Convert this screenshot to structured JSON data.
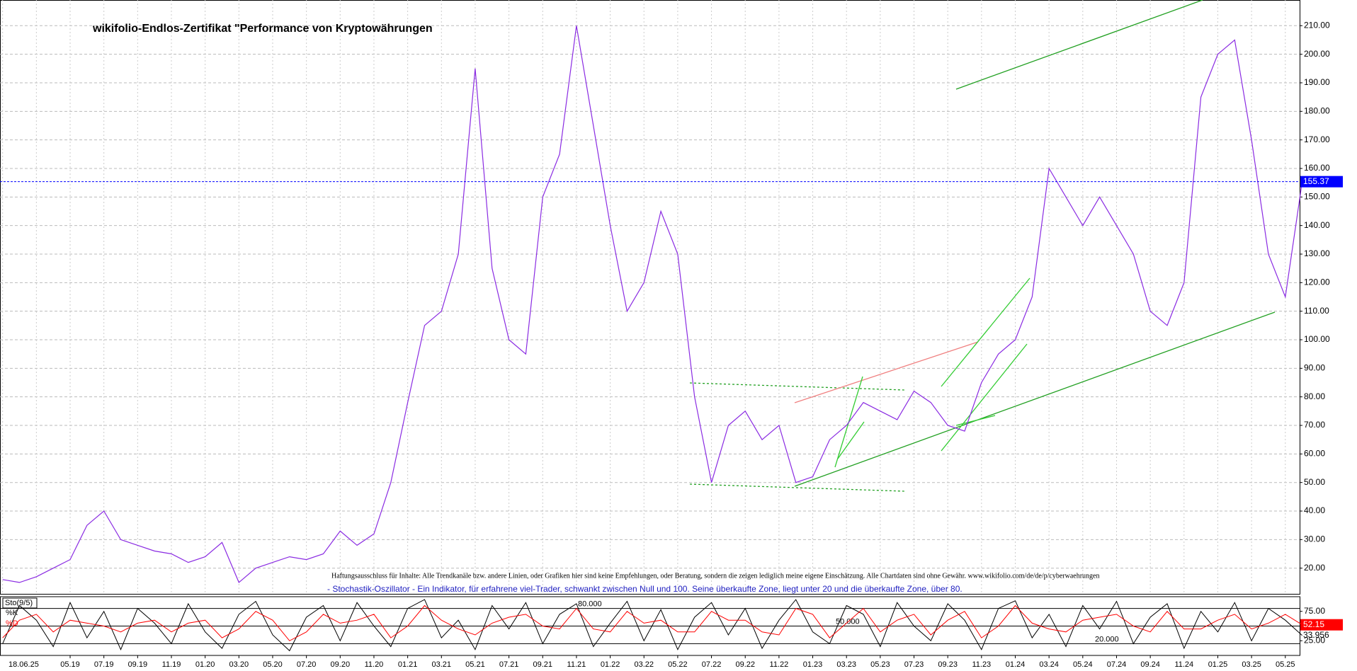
{
  "chart_data": [
    {
      "type": "line",
      "title": "wikifolio-Endlos-Zertifikat \"Performance von Kryptowährungen",
      "disclaimer": "Haftungsausschluss für Inhalte: Alle Trendkanäle bzw. andere Linien, oder Grafiken hier sind keine Empfehlungen, oder Beratung, sondern die zeigen lediglich meine eigene Einschätzung. Alle Chartdaten sind ohne Gewähr.  www.wikifolio.com/de/de/p/cyberwaehrungen",
      "note": "- Stochastik-Oszillator - Ein Indikator, für erfahrene viel-Trader, schwankt zwischen Null und 100. Seine überkaufte Zone, liegt unter 20 und die überkaufte Zone, über 80.",
      "date_label": "18.06.25",
      "color": "#8a2be2",
      "last_line_color": "#0000ff",
      "grid": true,
      "categories": [
        null,
        null,
        null,
        null,
        "05.19",
        null,
        "07.19",
        null,
        "09.19",
        null,
        "11.19",
        null,
        "01.20",
        null,
        "03.20",
        null,
        "05.20",
        null,
        "07.20",
        null,
        "09.20",
        null,
        "11.20",
        null,
        "01.21",
        null,
        "03.21",
        null,
        "05.21",
        null,
        "07.21",
        null,
        "09.21",
        null,
        "11.21",
        null,
        "01.22",
        null,
        "03.22",
        null,
        "05.22",
        null,
        "07.22",
        null,
        "09.22",
        null,
        "11.22",
        null,
        "01.23",
        null,
        "03.23",
        null,
        "05.23",
        null,
        "07.23",
        null,
        "09.23",
        null,
        "11.23",
        null,
        "01.24",
        null,
        "03.24",
        null,
        "05.24",
        null,
        "07.24",
        null,
        "09.24",
        null,
        "11.24",
        null,
        "01.25",
        null,
        "03.25",
        null,
        "05.25",
        null
      ],
      "values": [
        16,
        15,
        17,
        20,
        23,
        35,
        40,
        30,
        28,
        26,
        25,
        22,
        24,
        29,
        15,
        20,
        22,
        24,
        23,
        25,
        33,
        28,
        32,
        50,
        78,
        105,
        110,
        130,
        195,
        125,
        100,
        95,
        150,
        165,
        210,
        175,
        140,
        110,
        120,
        145,
        130,
        80,
        50,
        70,
        75,
        65,
        70,
        50,
        52,
        65,
        70,
        78,
        75,
        72,
        82,
        78,
        70,
        68,
        85,
        95,
        100,
        115,
        160,
        150,
        140,
        150,
        140,
        130,
        110,
        105,
        120,
        185,
        200,
        205,
        170,
        130,
        115,
        155.37
      ],
      "ylim": [
        11,
        219
      ],
      "yticks": [
        {
          "value": 20,
          "label": "20.00"
        },
        {
          "value": 30,
          "label": "30.00"
        },
        {
          "value": 40,
          "label": "40.00"
        },
        {
          "value": 50,
          "label": "50.00"
        },
        {
          "value": 60,
          "label": "60.00"
        },
        {
          "value": 70,
          "label": "70.00"
        },
        {
          "value": 80,
          "label": "80.00"
        },
        {
          "value": 90,
          "label": "90.00"
        },
        {
          "value": 100,
          "label": "100.00"
        },
        {
          "value": 110,
          "label": "110.00"
        },
        {
          "value": 120,
          "label": "120.00"
        },
        {
          "value": 130,
          "label": "130.00"
        },
        {
          "value": 140,
          "label": "140.00"
        },
        {
          "value": 150,
          "label": "150.00"
        },
        {
          "value": 160,
          "label": "160.00"
        },
        {
          "value": 170,
          "label": "170.00"
        },
        {
          "value": 180,
          "label": "180.00"
        },
        {
          "value": 190,
          "label": "190.00"
        },
        {
          "value": 200,
          "label": "200.00"
        },
        {
          "value": 210,
          "label": "210.00"
        }
      ]
    },
    {
      "type": "line",
      "title": "Sto(9/5)",
      "ylim": [
        0,
        100
      ],
      "yticks": [
        {
          "value": 75,
          "label": "75.00"
        },
        {
          "value": 25,
          "label": "25.00"
        }
      ],
      "levels": [
        {
          "value": 80,
          "label": "80.000"
        },
        {
          "value": 50,
          "label": "50.000"
        },
        {
          "value": 20,
          "label": "20.000"
        }
      ],
      "series": [
        {
          "name": "%K",
          "color": "#000000",
          "values": [
            20,
            85,
            60,
            15,
            90,
            30,
            75,
            10,
            80,
            55,
            20,
            88,
            40,
            12,
            70,
            92,
            35,
            8,
            65,
            85,
            25,
            90,
            50,
            15,
            80,
            95,
            30,
            60,
            10,
            85,
            45,
            90,
            20,
            70,
            88,
            15,
            55,
            92,
            25,
            78,
            10,
            65,
            90,
            35,
            80,
            12,
            60,
            95,
            40,
            20,
            85,
            70,
            15,
            90,
            50,
            25,
            88,
            60,
            10,
            80,
            93,
            30,
            70,
            15,
            85,
            45,
            92,
            20,
            65,
            88,
            12,
            75,
            40,
            90,
            25,
            80,
            60,
            33.956
          ]
        },
        {
          "name": "%D",
          "color": "#ff0000",
          "values": [
            30,
            60,
            70,
            40,
            60,
            55,
            50,
            40,
            55,
            60,
            40,
            55,
            60,
            30,
            45,
            75,
            60,
            25,
            40,
            70,
            55,
            60,
            70,
            30,
            50,
            85,
            60,
            45,
            35,
            55,
            65,
            70,
            50,
            45,
            80,
            45,
            40,
            75,
            55,
            60,
            40,
            40,
            75,
            60,
            60,
            40,
            35,
            80,
            70,
            30,
            55,
            80,
            40,
            60,
            70,
            35,
            60,
            75,
            30,
            50,
            85,
            55,
            45,
            40,
            60,
            65,
            70,
            50,
            40,
            75,
            45,
            45,
            60,
            70,
            45,
            55,
            70,
            52.15
          ]
        }
      ]
    }
  ]
}
